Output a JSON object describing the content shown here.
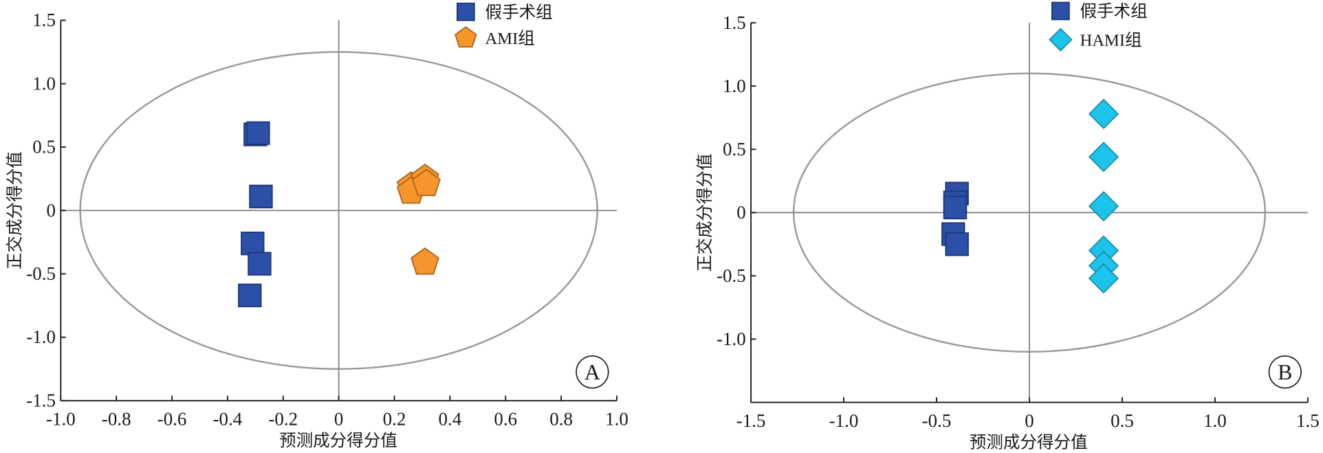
{
  "chart_data": [
    {
      "panel": "A",
      "type": "scatter",
      "xlabel": "预测成分得分值",
      "ylabel": "正交成分得分值",
      "xlim": [
        -1.0,
        1.0
      ],
      "ylim": [
        -1.5,
        1.5
      ],
      "x_tick_labels": [
        "-1.0",
        "-0.8",
        "-0.6",
        "-0.4",
        "-0.2",
        "0",
        "0.2",
        "0.4",
        "0.6",
        "0.8",
        "1.0"
      ],
      "y_tick_labels": [
        "1.5",
        "1.0",
        "0.5",
        "0",
        "-0.5",
        "-1.0",
        "-1.5"
      ],
      "grid": false,
      "legend_position": "top",
      "confidence_ellipse": {
        "x_radius": 0.93,
        "y_radius": 1.25
      },
      "series": [
        {
          "name": "假手术组",
          "marker": "square",
          "color": "#2c50a8",
          "edge_color": "#1d3679",
          "points": [
            [
              -0.3,
              0.6
            ],
            [
              -0.29,
              0.61
            ],
            [
              -0.28,
              0.11
            ],
            [
              -0.31,
              -0.26
            ],
            [
              -0.285,
              -0.42
            ],
            [
              -0.32,
              -0.67
            ]
          ]
        },
        {
          "name": "AMI组",
          "marker": "pentagon",
          "color": "#f7952d",
          "edge_color": "#a8661f",
          "points": [
            [
              0.26,
              0.19
            ],
            [
              0.26,
              0.15
            ],
            [
              0.31,
              0.25
            ],
            [
              0.315,
              0.21
            ],
            [
              0.31,
              -0.41
            ]
          ]
        }
      ]
    },
    {
      "panel": "B",
      "type": "scatter",
      "xlabel": "预测成分得分值",
      "ylabel": "正交成分得分值",
      "xlim": [
        -1.5,
        1.5
      ],
      "ylim": [
        -1.5,
        1.5
      ],
      "x_tick_labels": [
        "-1.5",
        "-1.0",
        "-0.5",
        "0",
        "0.5",
        "1.0",
        "1.5"
      ],
      "y_tick_labels": [
        "1.5",
        "1.0",
        "0.5",
        "0",
        "-0.5",
        "-1.0"
      ],
      "grid": false,
      "legend_position": "top",
      "confidence_ellipse": {
        "x_radius": 1.27,
        "y_radius": 1.1
      },
      "series": [
        {
          "name": "假手术组",
          "marker": "square",
          "color": "#2c50a8",
          "edge_color": "#1d3679",
          "points": [
            [
              -0.39,
              0.15
            ],
            [
              -0.4,
              0.08
            ],
            [
              -0.4,
              0.04
            ],
            [
              -0.41,
              -0.17
            ],
            [
              -0.39,
              -0.25
            ]
          ]
        },
        {
          "name": "HAMI组",
          "marker": "diamond",
          "color": "#1cc3ea",
          "edge_color": "#1a8fb0",
          "points": [
            [
              0.4,
              0.78
            ],
            [
              0.4,
              0.44
            ],
            [
              0.4,
              0.05
            ],
            [
              0.4,
              -0.3
            ],
            [
              0.4,
              -0.42
            ],
            [
              0.4,
              -0.52
            ]
          ]
        }
      ]
    }
  ]
}
